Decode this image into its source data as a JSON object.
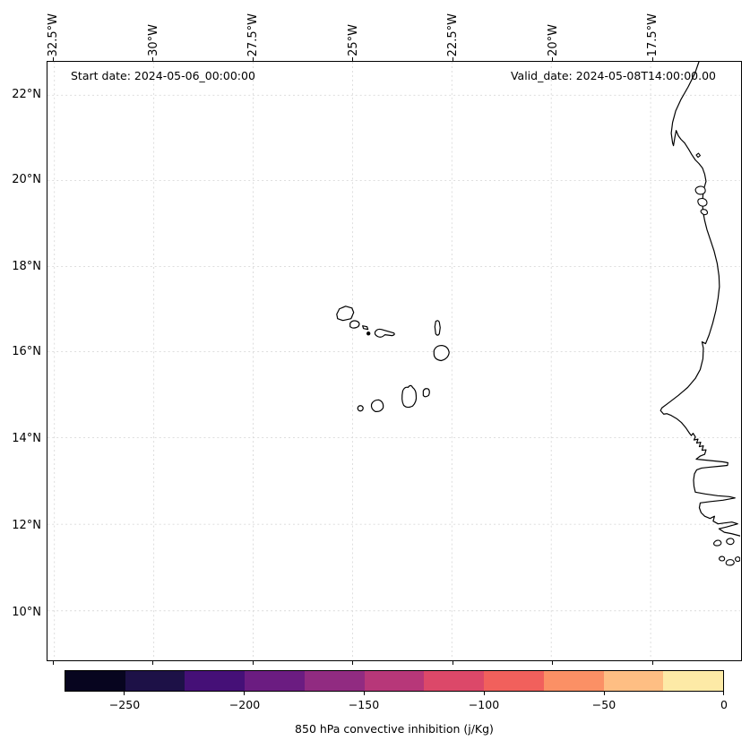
{
  "annotations": {
    "start_date": "Start date: 2024-05-06_00:00:00",
    "valid_date": "Valid_date: 2024-05-08T14:00:00.00"
  },
  "axes": {
    "lon_labels": [
      "32.5°W",
      "30°W",
      "27.5°W",
      "25°W",
      "22.5°W",
      "20°W",
      "17.5°W"
    ],
    "lat_labels": [
      "22°N",
      "20°N",
      "18°N",
      "16°N",
      "14°N",
      "12°N",
      "10°N"
    ]
  },
  "colorbar": {
    "label": "850 hPa convective inhibition (j/Kg)",
    "tick_labels": [
      "−250",
      "−200",
      "−150",
      "−100",
      "−50",
      "0"
    ],
    "tick_values": [
      -250,
      -200,
      -150,
      -100,
      -50,
      0
    ],
    "value_range": [
      -275,
      0
    ],
    "colormap": "magma",
    "segment_colors": [
      "#07051f",
      "#1d1147",
      "#451077",
      "#6b1c81",
      "#912b81",
      "#b73779",
      "#dc4869",
      "#f1605c",
      "#fb9065",
      "#febe83",
      "#fdeaa6"
    ]
  },
  "chart_data": {
    "type": "map",
    "field_label": "850 hPa convective inhibition (j/Kg)",
    "start_date": "2024-05-06_00:00:00",
    "valid_date": "2024-05-08T14:00:00.00",
    "x_ticks_longitude_deg_west": [
      32.5,
      30,
      27.5,
      25,
      22.5,
      20,
      17.5
    ],
    "y_ticks_latitude_deg_north": [
      22,
      20,
      18,
      16,
      14,
      12,
      10
    ],
    "grid": true,
    "field_fill": "none (map interior white)",
    "colorbar": {
      "range": [
        -275,
        0
      ],
      "ticks": [
        -250,
        -200,
        -150,
        -100,
        -50,
        0
      ],
      "n_discrete_segments": 11,
      "colormap": "magma"
    },
    "visible_geography": [
      "cape-verde-archipelago",
      "west-african-coastline"
    ]
  },
  "style": {
    "grid_color": "#d9d9d9",
    "coast_color": "#000000",
    "background": "#ffffff"
  }
}
